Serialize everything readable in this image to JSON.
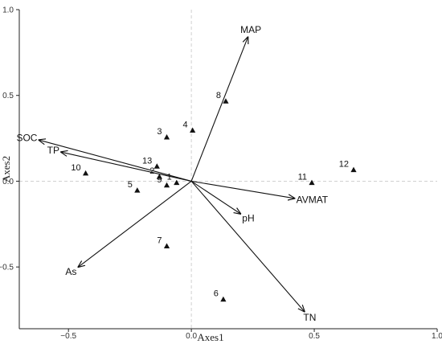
{
  "chart_data": {
    "type": "scatter",
    "title": "",
    "xlabel": "Axes1",
    "ylabel": "Axes2",
    "xlim": [
      -0.7,
      1.0
    ],
    "ylim": [
      -0.86,
      1.0
    ],
    "x_ticks": [
      -0.5,
      0.0,
      0.5,
      1.0
    ],
    "x_tick_labels": [
      "-0.5",
      "0.0",
      "0.5",
      "1.0"
    ],
    "y_ticks": [
      -0.5,
      0.0,
      0.5,
      1.0
    ],
    "y_tick_labels": [
      "-0.5",
      "0.0",
      "0.5",
      "1.0"
    ],
    "zero_reference_lines": "dashed",
    "grid": false,
    "sites": [
      {
        "label": "1",
        "x": -0.06,
        "y": -0.01
      },
      {
        "label": "2",
        "x": -0.13,
        "y": 0.025
      },
      {
        "label": "3",
        "x": -0.1,
        "y": 0.255
      },
      {
        "label": "4",
        "x": 0.005,
        "y": 0.295
      },
      {
        "label": "5",
        "x": -0.22,
        "y": -0.055
      },
      {
        "label": "6",
        "x": 0.13,
        "y": -0.69
      },
      {
        "label": "7",
        "x": -0.1,
        "y": -0.38
      },
      {
        "label": "8",
        "x": 0.14,
        "y": 0.465
      },
      {
        "label": "9",
        "x": -0.1,
        "y": -0.025
      },
      {
        "label": "10",
        "x": -0.43,
        "y": 0.045
      },
      {
        "label": "11",
        "x": 0.49,
        "y": -0.01
      },
      {
        "label": "12",
        "x": 0.66,
        "y": 0.065
      },
      {
        "label": "13",
        "x": -0.14,
        "y": 0.085
      }
    ],
    "vectors": [
      {
        "label": "MAP",
        "x": 0.23,
        "y": 0.84
      },
      {
        "label": "SOC",
        "x": -0.62,
        "y": 0.24
      },
      {
        "label": "TP",
        "x": -0.53,
        "y": 0.17
      },
      {
        "label": "AVMAT",
        "x": 0.42,
        "y": -0.1
      },
      {
        "label": "pH",
        "x": 0.2,
        "y": -0.19
      },
      {
        "label": "As",
        "x": -0.46,
        "y": -0.5
      },
      {
        "label": "TN",
        "x": 0.46,
        "y": -0.76
      }
    ]
  }
}
